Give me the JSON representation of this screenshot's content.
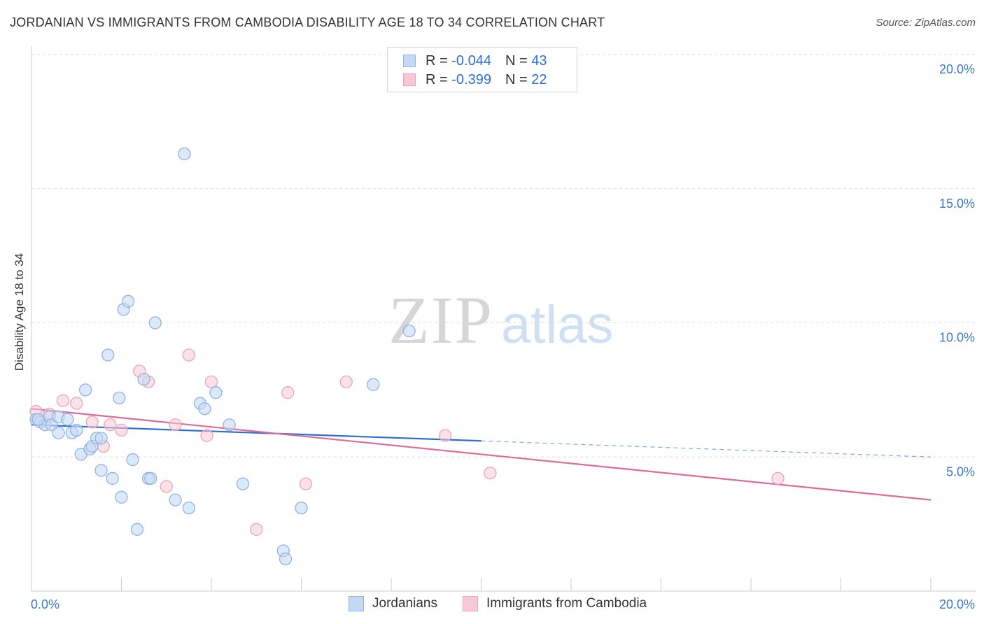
{
  "title": "JORDANIAN VS IMMIGRANTS FROM CAMBODIA DISABILITY AGE 18 TO 34 CORRELATION CHART",
  "source": "Source: ZipAtlas.com",
  "watermark": {
    "zip": "ZIP",
    "atlas": "atlas"
  },
  "legend_top": {
    "rows": [
      {
        "r_label": "R =",
        "r_value": "-0.044",
        "n_label": "N =",
        "n_value": "43"
      },
      {
        "r_label": "R =",
        "r_value": "-0.399",
        "n_label": "N =",
        "n_value": "22"
      }
    ]
  },
  "legend_bottom": {
    "series_a": "Jordanians",
    "series_b": "Immigrants from Cambodia"
  },
  "colors": {
    "blue_fill": "#c6d9f3",
    "blue_stroke": "#8fb4e4",
    "blue_line": "#2e6fd6",
    "pink_fill": "#f7c9d6",
    "pink_stroke": "#eea3b9",
    "pink_line": "#e06b97",
    "axis_text": "#3d78c9",
    "grid": "#dcdcdc"
  },
  "chart_data": {
    "type": "scatter",
    "title": "JORDANIAN VS IMMIGRANTS FROM CAMBODIA DISABILITY AGE 18 TO 34 CORRELATION CHART",
    "xlabel": "",
    "ylabel": "Disability Age 18 to 34",
    "xlim": [
      0,
      20
    ],
    "ylim": [
      0,
      20
    ],
    "x_tick_labels": [
      "0.0%",
      "20.0%"
    ],
    "y_tick_labels": [
      "5.0%",
      "10.0%",
      "15.0%",
      "20.0%"
    ],
    "y_ticks": [
      5,
      10,
      15,
      20
    ],
    "grid": true,
    "legend_placement": "top-center and bottom",
    "series": [
      {
        "name": "Jordanians",
        "R": -0.044,
        "N": 43,
        "trend": {
          "x0": 0,
          "y0": 6.2,
          "x1": 20,
          "y1": 5.0,
          "solid_until_x": 10
        },
        "points": [
          [
            0.1,
            6.4
          ],
          [
            0.2,
            6.3
          ],
          [
            0.3,
            6.2
          ],
          [
            0.4,
            6.5
          ],
          [
            0.45,
            6.2
          ],
          [
            0.6,
            6.5
          ],
          [
            0.6,
            5.9
          ],
          [
            0.8,
            6.4
          ],
          [
            0.9,
            5.9
          ],
          [
            1.0,
            6.0
          ],
          [
            1.1,
            5.1
          ],
          [
            1.2,
            7.5
          ],
          [
            1.3,
            5.3
          ],
          [
            1.35,
            5.4
          ],
          [
            1.45,
            5.7
          ],
          [
            1.55,
            4.5
          ],
          [
            1.55,
            5.7
          ],
          [
            1.7,
            8.8
          ],
          [
            1.8,
            4.2
          ],
          [
            1.95,
            7.2
          ],
          [
            2.0,
            3.5
          ],
          [
            2.05,
            10.5
          ],
          [
            2.15,
            10.8
          ],
          [
            2.25,
            4.9
          ],
          [
            2.35,
            2.3
          ],
          [
            2.5,
            7.9
          ],
          [
            2.6,
            4.2
          ],
          [
            2.65,
            4.2
          ],
          [
            2.75,
            10.0
          ],
          [
            3.2,
            3.4
          ],
          [
            3.4,
            16.3
          ],
          [
            3.5,
            3.1
          ],
          [
            3.75,
            7.0
          ],
          [
            3.85,
            6.8
          ],
          [
            4.1,
            7.4
          ],
          [
            4.4,
            6.2
          ],
          [
            4.7,
            4.0
          ],
          [
            5.6,
            1.5
          ],
          [
            5.65,
            1.2
          ],
          [
            6.0,
            3.1
          ],
          [
            7.6,
            7.7
          ],
          [
            8.4,
            9.7
          ],
          [
            0.15,
            6.4
          ]
        ]
      },
      {
        "name": "Immigrants from Cambodia",
        "R": -0.399,
        "N": 22,
        "trend": {
          "x0": 0,
          "y0": 6.8,
          "x1": 20,
          "y1": 3.4
        },
        "points": [
          [
            0.1,
            6.7
          ],
          [
            0.4,
            6.6
          ],
          [
            0.7,
            7.1
          ],
          [
            1.0,
            7.0
          ],
          [
            1.35,
            6.3
          ],
          [
            1.6,
            5.4
          ],
          [
            1.75,
            6.2
          ],
          [
            2.0,
            6.0
          ],
          [
            2.4,
            8.2
          ],
          [
            2.6,
            7.8
          ],
          [
            3.0,
            3.9
          ],
          [
            3.2,
            6.2
          ],
          [
            3.5,
            8.8
          ],
          [
            3.9,
            5.8
          ],
          [
            4.0,
            7.8
          ],
          [
            5.0,
            2.3
          ],
          [
            5.7,
            7.4
          ],
          [
            6.1,
            4.0
          ],
          [
            7.0,
            7.8
          ],
          [
            9.2,
            5.8
          ],
          [
            10.2,
            4.4
          ],
          [
            16.6,
            4.2
          ]
        ]
      }
    ]
  }
}
